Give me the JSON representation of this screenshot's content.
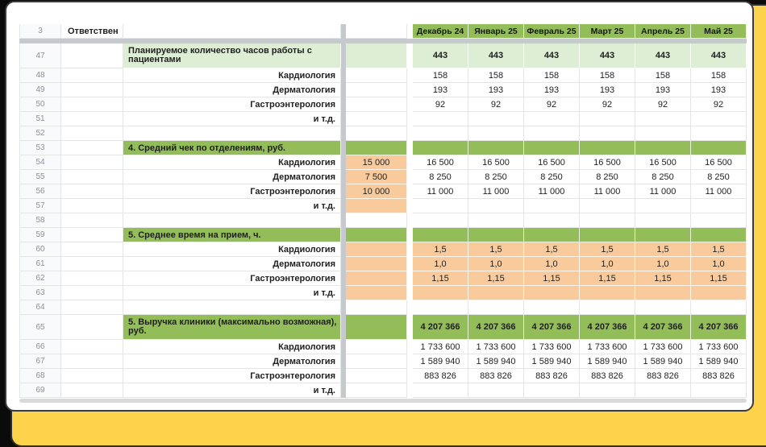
{
  "colors": {
    "band_green": "#93bd58",
    "light_green": "#ddeed5",
    "orange": "#f9cb9c",
    "divider_gray": "#c6c9cd",
    "back_card_yellow": "#fcd34b",
    "grid_line": "#e4e6e4",
    "row_number_text": "#8d9298"
  },
  "frozen_header": {
    "row_num": "3",
    "responsible_label": "Ответствен",
    "months": [
      "Декабрь 24",
      "Январь 25",
      "Февраль 25",
      "Март 25",
      "Апрель 25",
      "Май 25"
    ]
  },
  "rows": [
    {
      "num": "47",
      "tall": true,
      "desc": {
        "text": "Планируемое количество часов работы с пациентами",
        "fill": "light_green",
        "bold": true,
        "align": "left",
        "wrap": true
      },
      "narrow": {
        "fill": "light_green",
        "text": ""
      },
      "months": {
        "fill": "light_green",
        "bold": true,
        "values": [
          "443",
          "443",
          "443",
          "443",
          "443",
          "443"
        ]
      }
    },
    {
      "num": "48",
      "desc": {
        "text": "Кардиология",
        "bold": true,
        "align": "right"
      },
      "narrow": {
        "text": ""
      },
      "months": {
        "values": [
          "158",
          "158",
          "158",
          "158",
          "158",
          "158"
        ]
      }
    },
    {
      "num": "49",
      "desc": {
        "text": "Дерматология",
        "bold": true,
        "align": "right"
      },
      "narrow": {
        "text": ""
      },
      "months": {
        "values": [
          "193",
          "193",
          "193",
          "193",
          "193",
          "193"
        ]
      }
    },
    {
      "num": "50",
      "desc": {
        "text": "Гастроэнтерология",
        "bold": true,
        "align": "right"
      },
      "narrow": {
        "text": ""
      },
      "months": {
        "values": [
          "92",
          "92",
          "92",
          "92",
          "92",
          "92"
        ]
      }
    },
    {
      "num": "51",
      "desc": {
        "text": "и т.д.",
        "bold": true,
        "align": "right"
      },
      "narrow": {
        "text": ""
      },
      "months": {
        "values": [
          "",
          "",
          "",
          "",
          "",
          ""
        ]
      }
    },
    {
      "num": "52",
      "desc": {
        "text": ""
      },
      "narrow": {
        "text": ""
      },
      "months": {
        "values": [
          "",
          "",
          "",
          "",
          "",
          ""
        ]
      }
    },
    {
      "num": "53",
      "desc": {
        "text": "4. Средний чек по отделениям, руб.",
        "fill": "band_green",
        "bold": true,
        "align": "left"
      },
      "narrow": {
        "fill": "band_green",
        "text": ""
      },
      "months": {
        "fill": "band_green",
        "values": [
          "",
          "",
          "",
          "",
          "",
          ""
        ]
      }
    },
    {
      "num": "54",
      "desc": {
        "text": "Кардиология",
        "bold": true,
        "align": "right"
      },
      "narrow": {
        "fill": "orange",
        "text": "15 000"
      },
      "months": {
        "values": [
          "16 500",
          "16 500",
          "16 500",
          "16 500",
          "16 500",
          "16 500"
        ]
      }
    },
    {
      "num": "55",
      "desc": {
        "text": "Дерматология",
        "bold": true,
        "align": "right"
      },
      "narrow": {
        "fill": "orange",
        "text": "7 500"
      },
      "months": {
        "values": [
          "8 250",
          "8 250",
          "8 250",
          "8 250",
          "8 250",
          "8 250"
        ]
      }
    },
    {
      "num": "56",
      "desc": {
        "text": "Гастроэнтерология",
        "bold": true,
        "align": "right"
      },
      "narrow": {
        "fill": "orange",
        "text": "10 000"
      },
      "months": {
        "values": [
          "11 000",
          "11 000",
          "11 000",
          "11 000",
          "11 000",
          "11 000"
        ]
      }
    },
    {
      "num": "57",
      "desc": {
        "text": "и т.д.",
        "bold": true,
        "align": "right"
      },
      "narrow": {
        "fill": "orange",
        "text": ""
      },
      "months": {
        "values": [
          "",
          "",
          "",
          "",
          "",
          ""
        ]
      }
    },
    {
      "num": "58",
      "desc": {
        "text": ""
      },
      "narrow": {
        "text": ""
      },
      "months": {
        "values": [
          "",
          "",
          "",
          "",
          "",
          ""
        ]
      }
    },
    {
      "num": "59",
      "desc": {
        "text": "5. Среднее время на прием, ч.",
        "fill": "band_green",
        "bold": true,
        "align": "left"
      },
      "narrow": {
        "fill": "band_green",
        "text": ""
      },
      "months": {
        "fill": "band_green",
        "values": [
          "",
          "",
          "",
          "",
          "",
          ""
        ]
      }
    },
    {
      "num": "60",
      "desc": {
        "text": "Кардиология",
        "bold": true,
        "align": "right"
      },
      "narrow": {
        "fill": "orange",
        "text": ""
      },
      "months": {
        "fill": "orange",
        "values": [
          "1,5",
          "1,5",
          "1,5",
          "1,5",
          "1,5",
          "1,5"
        ]
      }
    },
    {
      "num": "61",
      "desc": {
        "text": "Дерматология",
        "bold": true,
        "align": "right"
      },
      "narrow": {
        "fill": "orange",
        "text": ""
      },
      "months": {
        "fill": "orange",
        "values": [
          "1,0",
          "1,0",
          "1,0",
          "1,0",
          "1,0",
          "1,0"
        ]
      }
    },
    {
      "num": "62",
      "desc": {
        "text": "Гастроэнтерология",
        "bold": true,
        "align": "right"
      },
      "narrow": {
        "fill": "orange",
        "text": ""
      },
      "months": {
        "fill": "orange",
        "values": [
          "1,15",
          "1,15",
          "1,15",
          "1,15",
          "1,15",
          "1,15"
        ]
      }
    },
    {
      "num": "63",
      "desc": {
        "text": "и т.д.",
        "bold": true,
        "align": "right"
      },
      "narrow": {
        "fill": "orange",
        "text": ""
      },
      "months": {
        "fill": "orange",
        "values": [
          "",
          "",
          "",
          "",
          "",
          ""
        ]
      }
    },
    {
      "num": "64",
      "desc": {
        "text": ""
      },
      "narrow": {
        "text": ""
      },
      "months": {
        "values": [
          "",
          "",
          "",
          "",
          "",
          ""
        ]
      }
    },
    {
      "num": "65",
      "tall": true,
      "desc": {
        "text": "5. Выручка клиники (максимально возможная), руб.",
        "fill": "band_green",
        "bold": true,
        "align": "left",
        "wrap": true
      },
      "narrow": {
        "fill": "band_green",
        "text": ""
      },
      "months": {
        "fill": "band_green",
        "bold": true,
        "values": [
          "4 207 366",
          "4 207 366",
          "4 207 366",
          "4 207 366",
          "4 207 366",
          "4 207 366"
        ]
      }
    },
    {
      "num": "66",
      "desc": {
        "text": "Кардиология",
        "bold": true,
        "align": "right"
      },
      "narrow": {
        "text": ""
      },
      "months": {
        "values": [
          "1 733 600",
          "1 733 600",
          "1 733 600",
          "1 733 600",
          "1 733 600",
          "1 733 600"
        ]
      }
    },
    {
      "num": "67",
      "desc": {
        "text": "Дерматология",
        "bold": true,
        "align": "right"
      },
      "narrow": {
        "text": ""
      },
      "months": {
        "values": [
          "1 589 940",
          "1 589 940",
          "1 589 940",
          "1 589 940",
          "1 589 940",
          "1 589 940"
        ]
      }
    },
    {
      "num": "68",
      "desc": {
        "text": "Гастроэнтерология",
        "bold": true,
        "align": "right"
      },
      "narrow": {
        "text": ""
      },
      "months": {
        "values": [
          "883 826",
          "883 826",
          "883 826",
          "883 826",
          "883 826",
          "883 826"
        ]
      }
    },
    {
      "num": "69",
      "desc": {
        "text": "и т.д.",
        "bold": true,
        "align": "right"
      },
      "narrow": {
        "text": ""
      },
      "months": {
        "values": [
          "",
          "",
          "",
          "",
          "",
          ""
        ]
      }
    }
  ]
}
